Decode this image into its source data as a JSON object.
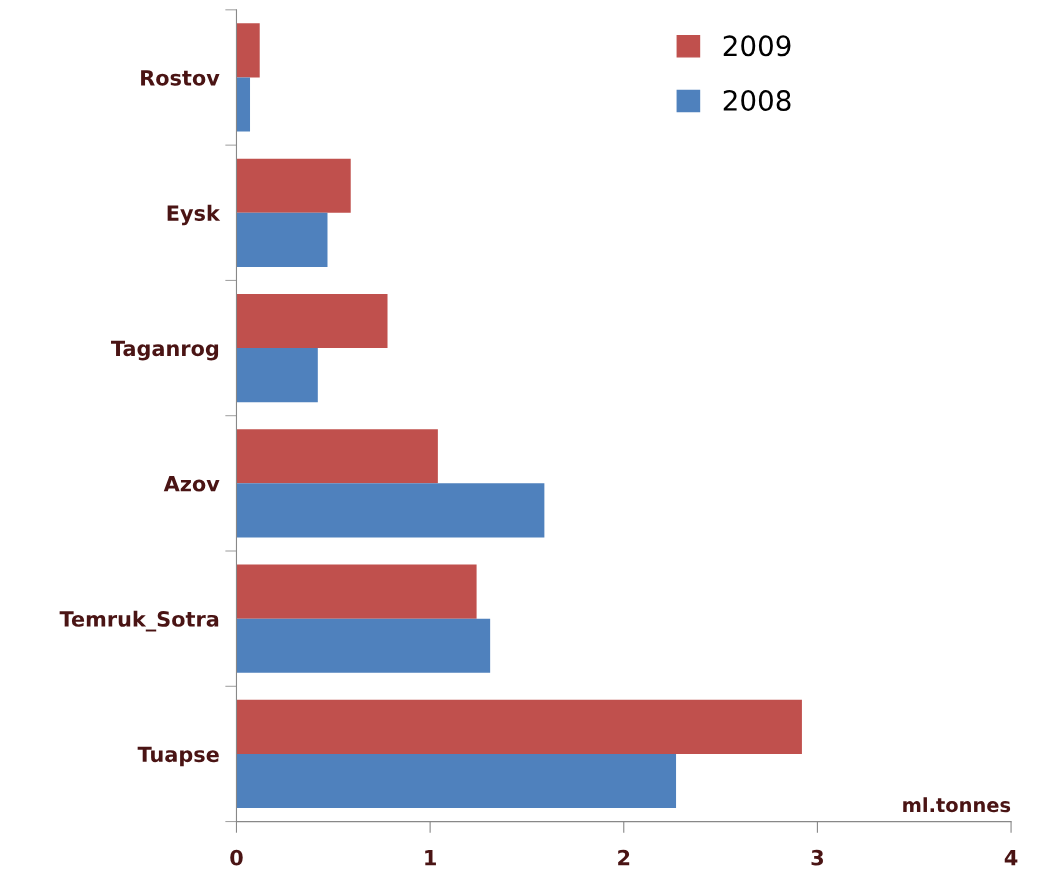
{
  "chart_data": {
    "type": "bar",
    "orientation": "horizontal",
    "xlabel": "ml.tonnes",
    "categories": [
      "Rostov",
      "Eysk",
      "Taganrog",
      "Azov",
      "Temruk_Sotra",
      "Tuapse"
    ],
    "series": [
      {
        "name": "2009",
        "color": "#c0504d",
        "values": [
          0.12,
          0.59,
          0.78,
          1.04,
          1.24,
          2.92
        ]
      },
      {
        "name": "2008",
        "color": "#4f81bd",
        "values": [
          0.07,
          0.47,
          0.42,
          1.59,
          1.31,
          2.27
        ]
      }
    ],
    "xlim": [
      0,
      4
    ],
    "xticks": [
      0,
      1,
      2,
      3,
      4
    ],
    "grid": false,
    "legend": "top right"
  }
}
